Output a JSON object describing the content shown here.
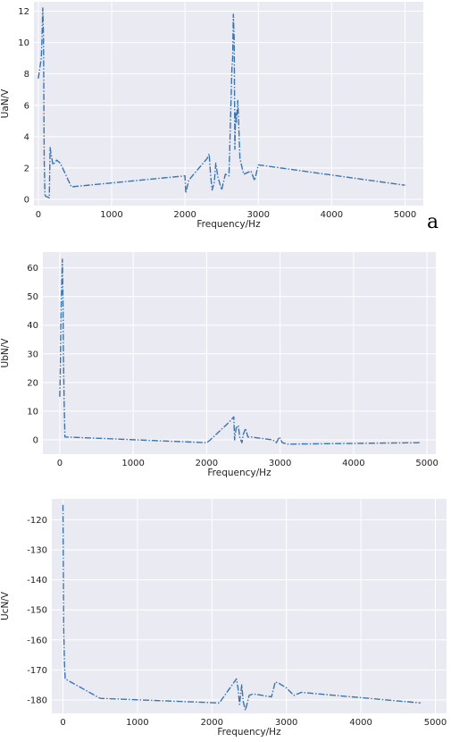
{
  "colors": {
    "background": "#EAEAF2",
    "grid": "#FFFFFF",
    "line": "#3A75B0"
  },
  "chart_data": [
    {
      "type": "line",
      "panel_label": "a",
      "xlabel": "Frequency/Hz",
      "ylabel": "UaN/V",
      "xlim": [
        -60,
        5250
      ],
      "ylim": [
        -0.4,
        12.6
      ],
      "xticks": [
        0,
        1000,
        2000,
        3000,
        4000,
        5000
      ],
      "yticks": [
        0,
        2,
        4,
        6,
        8,
        10,
        12
      ],
      "grid": true,
      "line_style": "dashdot",
      "series": [
        {
          "x": [
            0,
            40,
            50,
            60,
            70,
            80,
            90,
            100,
            150,
            160,
            170,
            200,
            250,
            300,
            350,
            450,
            2000,
            2010,
            2050,
            2100,
            2300,
            2330,
            2350,
            2370,
            2400,
            2420,
            2450,
            2500,
            2550,
            2600,
            2640,
            2650,
            2660,
            2670,
            2680,
            2690,
            2700,
            2720,
            2750,
            2800,
            2900,
            2950,
            3000,
            5000
          ],
          "y": [
            7.7,
            9,
            10.2,
            12.2,
            10.4,
            2.5,
            0.3,
            0.2,
            0.1,
            3.3,
            3,
            2.2,
            2.5,
            2.3,
            1.8,
            0.8,
            1.5,
            0.4,
            1.2,
            1.5,
            2.6,
            2.9,
            1.5,
            0.6,
            1.1,
            2.3,
            1.4,
            0.6,
            1.6,
            1.5,
            8.4,
            9,
            11.8,
            10.3,
            3.2,
            5.5,
            4.9,
            6.3,
            2.6,
            1.6,
            1.8,
            1.2,
            2.2,
            0.9
          ]
        }
      ]
    },
    {
      "type": "line",
      "xlabel": "Frequency/Hz",
      "ylabel": "UbN/V",
      "xlim": [
        -230,
        5120
      ],
      "ylim": [
        -5,
        65.5
      ],
      "xticks": [
        0,
        1000,
        2000,
        3000,
        4000,
        5000
      ],
      "yticks": [
        0,
        10,
        20,
        30,
        40,
        50,
        60
      ],
      "grid": true,
      "line_style": "dashdot",
      "series": [
        {
          "x": [
            0,
            5,
            10,
            15,
            20,
            25,
            30,
            35,
            40,
            45,
            50,
            60,
            70,
            2000,
            2050,
            2300,
            2370,
            2380,
            2400,
            2430,
            2450,
            2480,
            2500,
            2530,
            2560,
            2600,
            2900,
            2950,
            2990,
            3010,
            3030,
            3100,
            4900
          ],
          "y": [
            15,
            20,
            28,
            40,
            48,
            53,
            58,
            63,
            55,
            47,
            30,
            12,
            1,
            -1,
            0,
            6,
            8,
            0,
            4,
            5,
            1,
            -1,
            2,
            4,
            1,
            1,
            0,
            -1,
            1,
            0,
            -1,
            -1.5,
            -1
          ]
        }
      ]
    },
    {
      "type": "line",
      "xlabel": "Frequency/Hz",
      "ylabel": "UcN/V",
      "xlim": [
        -150,
        5150
      ],
      "ylim": [
        -184.5,
        -113
      ],
      "xticks": [
        0,
        1000,
        2000,
        3000,
        4000,
        5000
      ],
      "yticks": [
        -120,
        -130,
        -140,
        -150,
        -160,
        -170,
        -180
      ],
      "grid": true,
      "line_style": "dashdot",
      "series": [
        {
          "x": [
            0,
            5,
            10,
            20,
            30,
            500,
            2100,
            2300,
            2330,
            2350,
            2370,
            2400,
            2420,
            2450,
            2500,
            2550,
            2800,
            2850,
            2900,
            3000,
            3100,
            3200,
            4800
          ],
          "y": [
            -115,
            -135,
            -156,
            -168,
            -173,
            -179.5,
            -181,
            -174,
            -173,
            -176,
            -181.5,
            -175,
            -180.5,
            -183.5,
            -178.5,
            -178,
            -179,
            -174,
            -174.5,
            -176,
            -178.5,
            -177.5,
            -181
          ]
        }
      ]
    }
  ]
}
